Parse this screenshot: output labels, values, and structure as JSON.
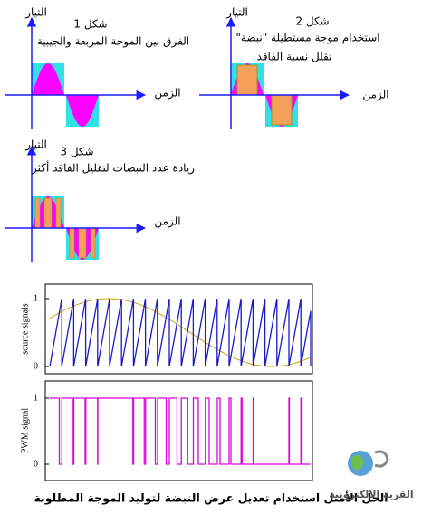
{
  "figures": [
    {
      "label": "شكل 1",
      "caption": [
        "الفرق بين الموجة المربعة والجيبية"
      ],
      "y_axis": "التيار",
      "x_axis": "الزمن"
    },
    {
      "label": "شكل 2",
      "caption": [
        "استخدام موجة مستطيلة \"نبضة\"",
        "تقلل نسبة الفاقد"
      ],
      "y_axis": "التيار",
      "x_axis": "الزمن"
    },
    {
      "label": "شكل 3",
      "caption": [
        "زيادة عدد النبضات لتقليل الفاقد أكثر"
      ],
      "y_axis": "التيار",
      "x_axis": "الزمن"
    }
  ],
  "plot": {
    "panels": [
      {
        "ylabel": "source signals",
        "yticks": [
          0,
          1
        ]
      },
      {
        "ylabel": "PWM signal",
        "yticks": [
          0,
          1
        ]
      }
    ]
  },
  "caption": "الحل الأمثل استخدام تعديل عرض النبضة لتوليد الموجة المطلوبة",
  "logo": "القرية الالكترونية"
}
